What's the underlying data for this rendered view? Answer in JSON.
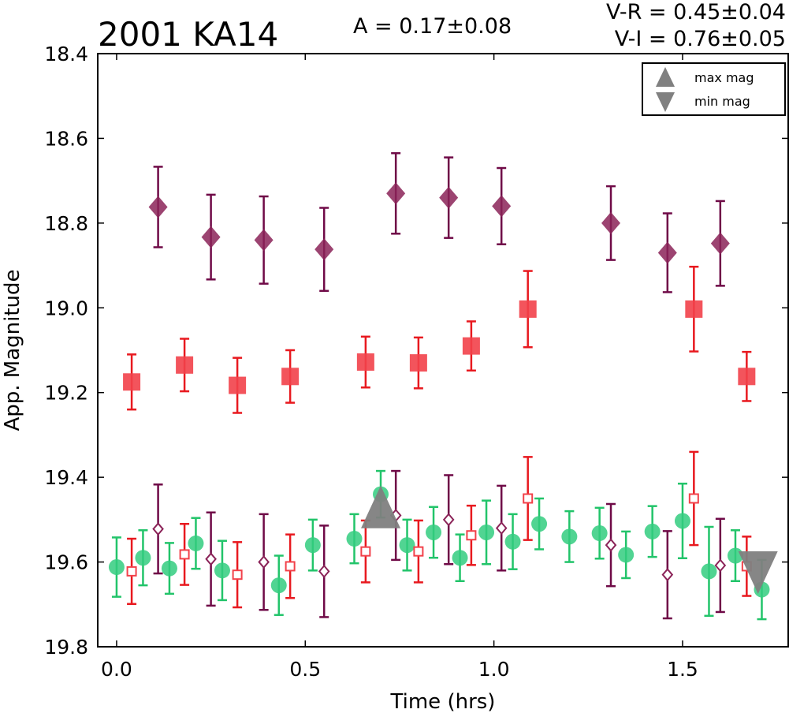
{
  "chart_data": {
    "type": "scatter",
    "title": "2001 KA14",
    "annotations": {
      "amplitude": "A  = 0.17±0.08",
      "vr": "V-R = 0.45±0.04",
      "vi": "V-I  = 0.76±0.05"
    },
    "xlabel": "Time (hrs)",
    "ylabel": "App. Magnitude",
    "xlim": [
      -0.05,
      1.78
    ],
    "ylim": [
      19.8,
      18.4
    ],
    "y_inverted": true,
    "xticks": [
      "0.0",
      "0.5",
      "1.0",
      "1.5"
    ],
    "xtick_values": [
      0.0,
      0.5,
      1.0,
      1.5
    ],
    "yticks": [
      "18.4",
      "18.6",
      "18.8",
      "19.0",
      "19.2",
      "19.4",
      "19.6",
      "19.8"
    ],
    "ytick_values": [
      18.4,
      18.6,
      18.8,
      19.0,
      19.2,
      19.4,
      19.6,
      19.8
    ],
    "legend": {
      "placement": "top-right",
      "entries": [
        {
          "label": "max mag",
          "marker": "triangle-up",
          "color": "#808080"
        },
        {
          "label": "min mag",
          "marker": "triangle-down",
          "color": "#808080"
        }
      ]
    },
    "series": [
      {
        "marker": "diamond-filled",
        "color": "#8b2358",
        "errcolor": "#6f0a47",
        "points": [
          {
            "x": 0.11,
            "y": 18.762,
            "err": 0.095
          },
          {
            "x": 0.25,
            "y": 18.833,
            "err": 0.1
          },
          {
            "x": 0.39,
            "y": 18.84,
            "err": 0.103
          },
          {
            "x": 0.55,
            "y": 18.862,
            "err": 0.098
          },
          {
            "x": 0.74,
            "y": 18.73,
            "err": 0.095
          },
          {
            "x": 0.88,
            "y": 18.74,
            "err": 0.095
          },
          {
            "x": 1.02,
            "y": 18.76,
            "err": 0.09
          },
          {
            "x": 1.31,
            "y": 18.8,
            "err": 0.087
          },
          {
            "x": 1.46,
            "y": 18.87,
            "err": 0.093
          },
          {
            "x": 1.6,
            "y": 18.848,
            "err": 0.1
          }
        ]
      },
      {
        "marker": "square-filled",
        "color": "#f2414a",
        "errcolor": "#e8191f",
        "points": [
          {
            "x": 0.04,
            "y": 19.175,
            "err": 0.065
          },
          {
            "x": 0.18,
            "y": 19.135,
            "err": 0.062
          },
          {
            "x": 0.32,
            "y": 19.183,
            "err": 0.065
          },
          {
            "x": 0.46,
            "y": 19.162,
            "err": 0.062
          },
          {
            "x": 0.66,
            "y": 19.128,
            "err": 0.06
          },
          {
            "x": 0.8,
            "y": 19.13,
            "err": 0.06
          },
          {
            "x": 0.94,
            "y": 19.09,
            "err": 0.058
          },
          {
            "x": 1.09,
            "y": 19.003,
            "err": 0.09
          },
          {
            "x": 1.53,
            "y": 19.003,
            "err": 0.1
          },
          {
            "x": 1.67,
            "y": 19.162,
            "err": 0.058
          }
        ]
      },
      {
        "marker": "circle-filled",
        "color": "#33cc7f",
        "errcolor": "#22c46a",
        "points": [
          {
            "x": 0.0,
            "y": 19.612,
            "err": 0.07
          },
          {
            "x": 0.07,
            "y": 19.59,
            "err": 0.065
          },
          {
            "x": 0.14,
            "y": 19.615,
            "err": 0.06
          },
          {
            "x": 0.21,
            "y": 19.556,
            "err": 0.06
          },
          {
            "x": 0.28,
            "y": 19.62,
            "err": 0.07
          },
          {
            "x": 0.43,
            "y": 19.655,
            "err": 0.07
          },
          {
            "x": 0.52,
            "y": 19.56,
            "err": 0.06
          },
          {
            "x": 0.63,
            "y": 19.545,
            "err": 0.058
          },
          {
            "x": 0.7,
            "y": 19.44,
            "err": 0.055
          },
          {
            "x": 0.77,
            "y": 19.56,
            "err": 0.06
          },
          {
            "x": 0.84,
            "y": 19.53,
            "err": 0.06
          },
          {
            "x": 0.91,
            "y": 19.59,
            "err": 0.055
          },
          {
            "x": 0.98,
            "y": 19.53,
            "err": 0.075
          },
          {
            "x": 1.05,
            "y": 19.552,
            "err": 0.065
          },
          {
            "x": 1.12,
            "y": 19.51,
            "err": 0.06
          },
          {
            "x": 1.2,
            "y": 19.54,
            "err": 0.06
          },
          {
            "x": 1.28,
            "y": 19.532,
            "err": 0.06
          },
          {
            "x": 1.35,
            "y": 19.583,
            "err": 0.055
          },
          {
            "x": 1.42,
            "y": 19.528,
            "err": 0.06
          },
          {
            "x": 1.5,
            "y": 19.503,
            "err": 0.088
          },
          {
            "x": 1.57,
            "y": 19.622,
            "err": 0.105
          },
          {
            "x": 1.64,
            "y": 19.585,
            "err": 0.06
          },
          {
            "x": 1.71,
            "y": 19.665,
            "err": 0.07
          }
        ]
      },
      {
        "marker": "square-open",
        "color": "#f2414a",
        "errcolor": "#e8191f",
        "points": [
          {
            "x": 0.04,
            "y": 19.622,
            "err": 0.077
          },
          {
            "x": 0.18,
            "y": 19.582,
            "err": 0.072
          },
          {
            "x": 0.32,
            "y": 19.63,
            "err": 0.077
          },
          {
            "x": 0.46,
            "y": 19.61,
            "err": 0.075
          },
          {
            "x": 0.66,
            "y": 19.575,
            "err": 0.073
          },
          {
            "x": 0.8,
            "y": 19.575,
            "err": 0.073
          },
          {
            "x": 0.94,
            "y": 19.537,
            "err": 0.07
          },
          {
            "x": 1.09,
            "y": 19.45,
            "err": 0.098
          },
          {
            "x": 1.53,
            "y": 19.45,
            "err": 0.11
          },
          {
            "x": 1.67,
            "y": 19.61,
            "err": 0.07
          }
        ]
      },
      {
        "marker": "diamond-open",
        "color": "#8b2358",
        "errcolor": "#6f0a47",
        "points": [
          {
            "x": 0.11,
            "y": 19.522,
            "err": 0.105
          },
          {
            "x": 0.25,
            "y": 19.593,
            "err": 0.11
          },
          {
            "x": 0.39,
            "y": 19.6,
            "err": 0.113
          },
          {
            "x": 0.55,
            "y": 19.622,
            "err": 0.108
          },
          {
            "x": 0.74,
            "y": 19.49,
            "err": 0.105
          },
          {
            "x": 0.88,
            "y": 19.5,
            "err": 0.105
          },
          {
            "x": 1.02,
            "y": 19.52,
            "err": 0.1
          },
          {
            "x": 1.31,
            "y": 19.56,
            "err": 0.097
          },
          {
            "x": 1.46,
            "y": 19.63,
            "err": 0.103
          },
          {
            "x": 1.6,
            "y": 19.608,
            "err": 0.11
          }
        ]
      }
    ],
    "extrema": [
      {
        "label": "max mag",
        "x": 0.7,
        "y": 19.47,
        "marker": "triangle-up",
        "color": "#808080"
      },
      {
        "label": "min mag",
        "x": 1.7,
        "y": 19.625,
        "marker": "triangle-down",
        "color": "#808080"
      }
    ]
  }
}
